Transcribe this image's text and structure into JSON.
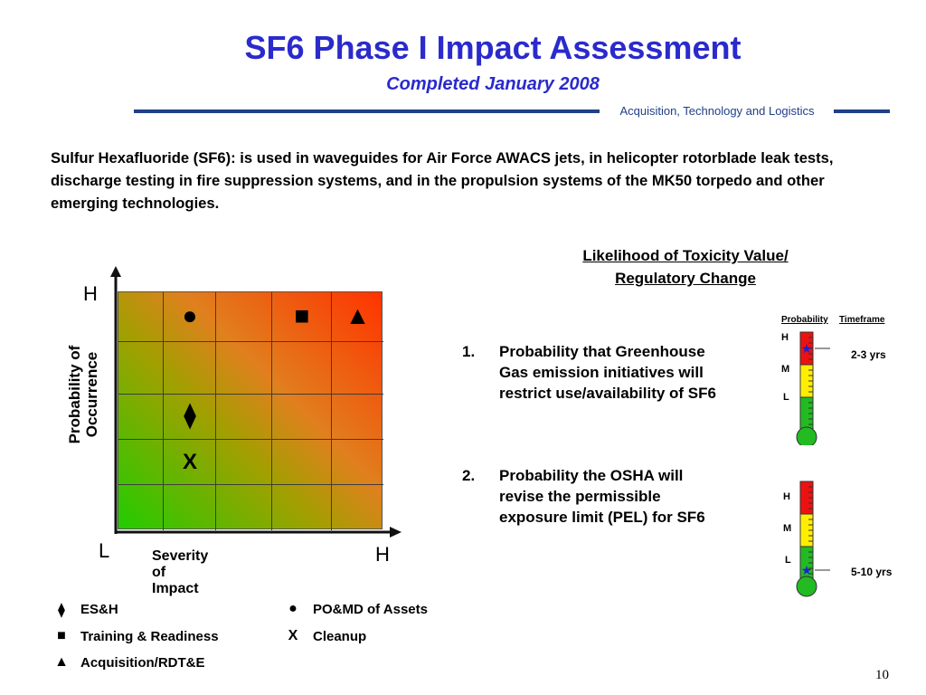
{
  "header": {
    "title": "SF6 Phase I Impact Assessment",
    "subtitle": "Completed January 2008",
    "org": "Acquisition, Technology and Logistics"
  },
  "intro": "Sulfur Hexafluoride (SF6): is used in waveguides for Air Force AWACS jets, in helicopter rotorblade leak tests, discharge testing in fire suppression systems, and in the propulsion systems of the MK50 torpedo and other emerging technologies.",
  "matrix": {
    "y_label": "Probability of Occurrence",
    "x_label": "Severity of Impact",
    "y_high": "H",
    "x_low": "L",
    "x_high": "H",
    "markers": [
      {
        "symbol": "●",
        "name": "PO&MD of Assets",
        "column": 2,
        "row": 5
      },
      {
        "symbol": "■",
        "name": "Training & Readiness",
        "column": 4,
        "row": 5
      },
      {
        "symbol": "▲",
        "name": "Acquisition/RDT&E",
        "column": 5,
        "row": 5
      },
      {
        "symbol": "⧫",
        "name": "ES&H",
        "column": 2,
        "row": 3
      },
      {
        "symbol": "X",
        "name": "Cleanup",
        "column": 2,
        "row": 2
      }
    ]
  },
  "legend": [
    {
      "symbol": "⧫",
      "label": "ES&H"
    },
    {
      "symbol": "●",
      "label": "PO&MD of Assets"
    },
    {
      "symbol": "■",
      "label": "Training & Readiness"
    },
    {
      "symbol": "X",
      "label": "Cleanup"
    },
    {
      "symbol": "▲",
      "label": "Acquisition/RDT&E"
    }
  ],
  "likelihood": {
    "heading_line1": "Likelihood of Toxicity Value/",
    "heading_line2": "Regulatory Change",
    "items": [
      {
        "num": "1.",
        "lines": [
          "Probability that Greenhouse",
          "Gas emission initiatives will",
          "restrict use/availability of SF6"
        ]
      },
      {
        "num": "2.",
        "lines": [
          "Probability the OSHA will",
          "revise the permissible",
          "exposure limit (PEL) for SF6"
        ]
      }
    ]
  },
  "thermometers": {
    "col_probability": "Probability",
    "col_timeframe": "Timeframe",
    "levels": [
      "H",
      "M",
      "L"
    ],
    "colors": {
      "high": "#ee1111",
      "medium": "#ffee00",
      "low": "#22bb22",
      "star": "#1f1fcc"
    },
    "t1": {
      "level": "H",
      "timeframe": "2-3 yrs"
    },
    "t2": {
      "level": "L",
      "timeframe": "5-10 yrs"
    }
  },
  "page_number": "10"
}
